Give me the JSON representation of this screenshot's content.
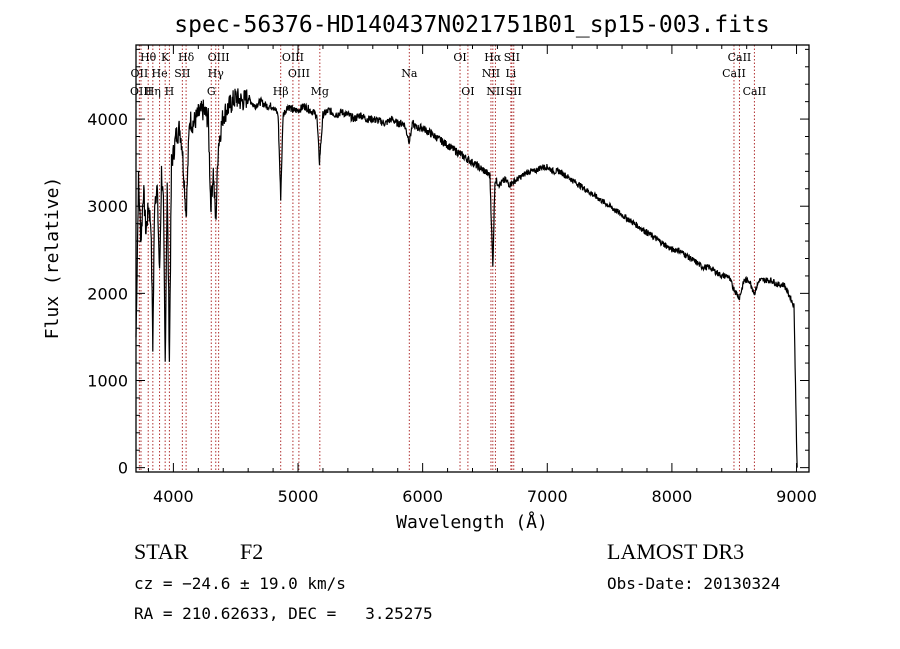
{
  "chart_data": {
    "type": "line",
    "title": "spec-56376-HD140437N021751B01_sp15-003.fits",
    "xlabel": "Wavelength (Å)",
    "ylabel": "Flux (relative)",
    "xlim": [
      3700,
      9100
    ],
    "ylim": [
      -50,
      4850
    ],
    "x_ticks": [
      4000,
      5000,
      6000,
      7000,
      8000,
      9000
    ],
    "y_ticks": [
      0,
      1000,
      2000,
      3000,
      4000
    ],
    "grid": false,
    "series": [
      {
        "name": "spectrum",
        "color": "#000000",
        "points": [
          [
            3700,
            1500
          ],
          [
            3720,
            3300
          ],
          [
            3740,
            2600
          ],
          [
            3760,
            3200
          ],
          [
            3780,
            2700
          ],
          [
            3800,
            3000
          ],
          [
            3820,
            2800
          ],
          [
            3835,
            1400
          ],
          [
            3850,
            3100
          ],
          [
            3870,
            3200
          ],
          [
            3889,
            2200
          ],
          [
            3905,
            3400
          ],
          [
            3920,
            3000
          ],
          [
            3934,
            1200
          ],
          [
            3950,
            3300
          ],
          [
            3968,
            1250
          ],
          [
            3985,
            3500
          ],
          [
            4000,
            3600
          ],
          [
            4020,
            3800
          ],
          [
            4050,
            3900
          ],
          [
            4070,
            3700
          ],
          [
            4102,
            2900
          ],
          [
            4130,
            4000
          ],
          [
            4160,
            3950
          ],
          [
            4200,
            4050
          ],
          [
            4240,
            4100
          ],
          [
            4280,
            4000
          ],
          [
            4300,
            3000
          ],
          [
            4320,
            3400
          ],
          [
            4340,
            2800
          ],
          [
            4360,
            3700
          ],
          [
            4400,
            4050
          ],
          [
            4450,
            4150
          ],
          [
            4500,
            4250
          ],
          [
            4550,
            4200
          ],
          [
            4600,
            4250
          ],
          [
            4650,
            4150
          ],
          [
            4700,
            4200
          ],
          [
            4750,
            4150
          ],
          [
            4800,
            4150
          ],
          [
            4840,
            4050
          ],
          [
            4861,
            3100
          ],
          [
            4880,
            4050
          ],
          [
            4920,
            4150
          ],
          [
            4960,
            4100
          ],
          [
            5000,
            4100
          ],
          [
            5050,
            4150
          ],
          [
            5100,
            4100
          ],
          [
            5150,
            4050
          ],
          [
            5172,
            3500
          ],
          [
            5200,
            4050
          ],
          [
            5250,
            4100
          ],
          [
            5300,
            4050
          ],
          [
            5350,
            4080
          ],
          [
            5400,
            4050
          ],
          [
            5450,
            4000
          ],
          [
            5500,
            4050
          ],
          [
            5550,
            4000
          ],
          [
            5600,
            4000
          ],
          [
            5650,
            3980
          ],
          [
            5700,
            3950
          ],
          [
            5750,
            4000
          ],
          [
            5800,
            3950
          ],
          [
            5850,
            3950
          ],
          [
            5893,
            3750
          ],
          [
            5920,
            3950
          ],
          [
            5950,
            3900
          ],
          [
            6000,
            3900
          ],
          [
            6050,
            3850
          ],
          [
            6100,
            3800
          ],
          [
            6150,
            3750
          ],
          [
            6200,
            3700
          ],
          [
            6250,
            3650
          ],
          [
            6300,
            3600
          ],
          [
            6350,
            3550
          ],
          [
            6400,
            3500
          ],
          [
            6450,
            3450
          ],
          [
            6500,
            3400
          ],
          [
            6540,
            3350
          ],
          [
            6563,
            2300
          ],
          [
            6580,
            3300
          ],
          [
            6620,
            3250
          ],
          [
            6660,
            3300
          ],
          [
            6700,
            3250
          ],
          [
            6750,
            3300
          ],
          [
            6800,
            3350
          ],
          [
            6850,
            3400
          ],
          [
            6900,
            3400
          ],
          [
            6950,
            3450
          ],
          [
            7000,
            3450
          ],
          [
            7050,
            3400
          ],
          [
            7100,
            3400
          ],
          [
            7150,
            3350
          ],
          [
            7200,
            3300
          ],
          [
            7250,
            3250
          ],
          [
            7300,
            3200
          ],
          [
            7350,
            3150
          ],
          [
            7400,
            3100
          ],
          [
            7450,
            3050
          ],
          [
            7500,
            3000
          ],
          [
            7550,
            2950
          ],
          [
            7600,
            2900
          ],
          [
            7650,
            2850
          ],
          [
            7700,
            2800
          ],
          [
            7750,
            2750
          ],
          [
            7800,
            2700
          ],
          [
            7850,
            2650
          ],
          [
            7900,
            2600
          ],
          [
            7950,
            2550
          ],
          [
            8000,
            2500
          ],
          [
            8050,
            2500
          ],
          [
            8100,
            2450
          ],
          [
            8150,
            2400
          ],
          [
            8200,
            2350
          ],
          [
            8250,
            2300
          ],
          [
            8300,
            2300
          ],
          [
            8350,
            2250
          ],
          [
            8400,
            2200
          ],
          [
            8450,
            2200
          ],
          [
            8498,
            2050
          ],
          [
            8542,
            1950
          ],
          [
            8580,
            2150
          ],
          [
            8620,
            2150
          ],
          [
            8662,
            2000
          ],
          [
            8700,
            2150
          ],
          [
            8750,
            2150
          ],
          [
            8800,
            2150
          ],
          [
            8850,
            2100
          ],
          [
            8900,
            2100
          ],
          [
            8950,
            1950
          ],
          [
            8980,
            1850
          ],
          [
            9000,
            300
          ],
          [
            9005,
            0
          ]
        ]
      }
    ],
    "lines": [
      {
        "label": "Hθ",
        "wavelength": 3798,
        "tier": 1
      },
      {
        "label": "OII",
        "wavelength": 3727,
        "tier": 2
      },
      {
        "label": "OIII",
        "wavelength": 3740,
        "tier": 3
      },
      {
        "label": "K",
        "wavelength": 3934,
        "tier": 1
      },
      {
        "label": "He",
        "wavelength": 3889,
        "tier": 2
      },
      {
        "label": "Hη",
        "wavelength": 3835,
        "tier": 3
      },
      {
        "label": "Hδ",
        "wavelength": 4102,
        "tier": 1
      },
      {
        "label": "SII",
        "wavelength": 4072,
        "tier": 2
      },
      {
        "label": "H",
        "wavelength": 3968,
        "tier": 3
      },
      {
        "label": "OIII",
        "wavelength": 4363,
        "tier": 1
      },
      {
        "label": "Hγ",
        "wavelength": 4340,
        "tier": 2
      },
      {
        "label": "G",
        "wavelength": 4304,
        "tier": 3
      },
      {
        "label": "OIII",
        "wavelength": 4959,
        "tier": 1
      },
      {
        "label": "OIII",
        "wavelength": 5007,
        "tier": 2
      },
      {
        "label": "Hβ",
        "wavelength": 4861,
        "tier": 3
      },
      {
        "label": "Mg",
        "wavelength": 5175,
        "tier": 3
      },
      {
        "label": "Na",
        "wavelength": 5893,
        "tier": 2
      },
      {
        "label": "OI",
        "wavelength": 6300,
        "tier": 1
      },
      {
        "label": "OI",
        "wavelength": 6363,
        "tier": 3
      },
      {
        "label": "Hα",
        "wavelength": 6563,
        "tier": 1
      },
      {
        "label": "SII",
        "wavelength": 6716,
        "tier": 1
      },
      {
        "label": "NII",
        "wavelength": 6548,
        "tier": 2
      },
      {
        "label": "Li",
        "wavelength": 6708,
        "tier": 2
      },
      {
        "label": "NII",
        "wavelength": 6584,
        "tier": 3
      },
      {
        "label": "SII",
        "wavelength": 6731,
        "tier": 3
      },
      {
        "label": "CaII",
        "wavelength": 8542,
        "tier": 1
      },
      {
        "label": "CaII",
        "wavelength": 8498,
        "tier": 2
      },
      {
        "label": "CaII",
        "wavelength": 8662,
        "tier": 3
      }
    ]
  },
  "info": {
    "object_class": "STAR",
    "subclass": "F2",
    "survey": "LAMOST DR3",
    "redshift": "cz = −24.6 ± 19.0 km/s",
    "obs_date": "Obs-Date: 20130324",
    "coords": "RA = 210.62633, DEC =   3.25275"
  },
  "colors": {
    "line_marker": "#b03030",
    "spectrum": "#000000"
  }
}
